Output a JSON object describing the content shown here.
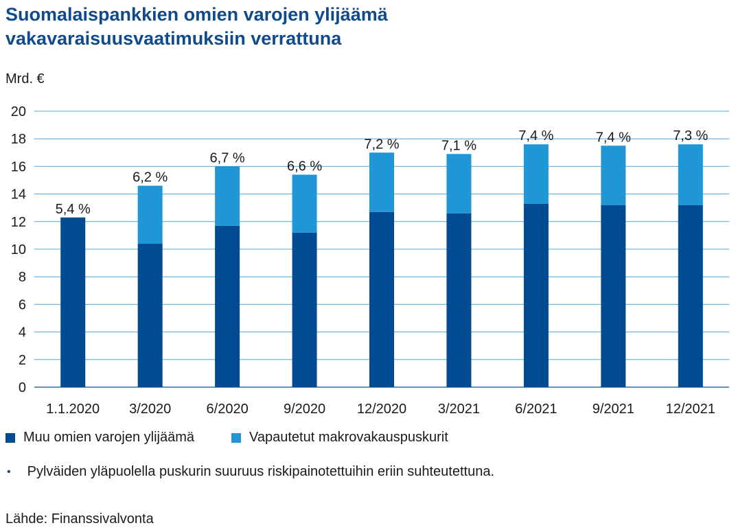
{
  "title_lines": [
    "Suomalaispankkien omien varojen ylijäämä",
    "vakavaraisuusvaatimuksiin verrattuna"
  ],
  "unit_label": "Mrd. €",
  "colors": {
    "title": "#0e4a8c",
    "series_dark": "#004b91",
    "series_light": "#1f97d6",
    "grid": "#4fa8d8"
  },
  "chart_data": {
    "type": "bar",
    "stacked": true,
    "categories": [
      "1.1.2020",
      "3/2020",
      "6/2020",
      "9/2020",
      "12/2020",
      "3/2021",
      "6/2021",
      "9/2021",
      "12/2021"
    ],
    "series": [
      {
        "name": "Muu omien varojen ylijäämä",
        "values": [
          12.3,
          10.4,
          11.7,
          11.2,
          12.7,
          12.6,
          13.3,
          13.2,
          13.2
        ]
      },
      {
        "name": "Vapautetut makrovakauspuskurit",
        "values": [
          0,
          4.2,
          4.3,
          4.2,
          4.3,
          4.3,
          4.3,
          4.3,
          4.4
        ]
      }
    ],
    "data_labels": [
      "5,4 %",
      "6,2 %",
      "6,7 %",
      "6,6 %",
      "7,2 %",
      "7,1 %",
      "7,4 %",
      "7,4 %",
      "7,3 %"
    ],
    "ylim": [
      0,
      20
    ],
    "yticks": [
      0,
      2,
      4,
      6,
      8,
      10,
      12,
      14,
      16,
      18,
      20
    ],
    "ylabel": "Mrd. €",
    "grid": true,
    "legend_position": "bottom-left"
  },
  "note": {
    "bullet": "•",
    "text": "Pylväiden yläpuolella puskurin suuruus riskipainotettuihin eriin suhteutettuna."
  },
  "source": "Lähde: Finanssivalvonta"
}
